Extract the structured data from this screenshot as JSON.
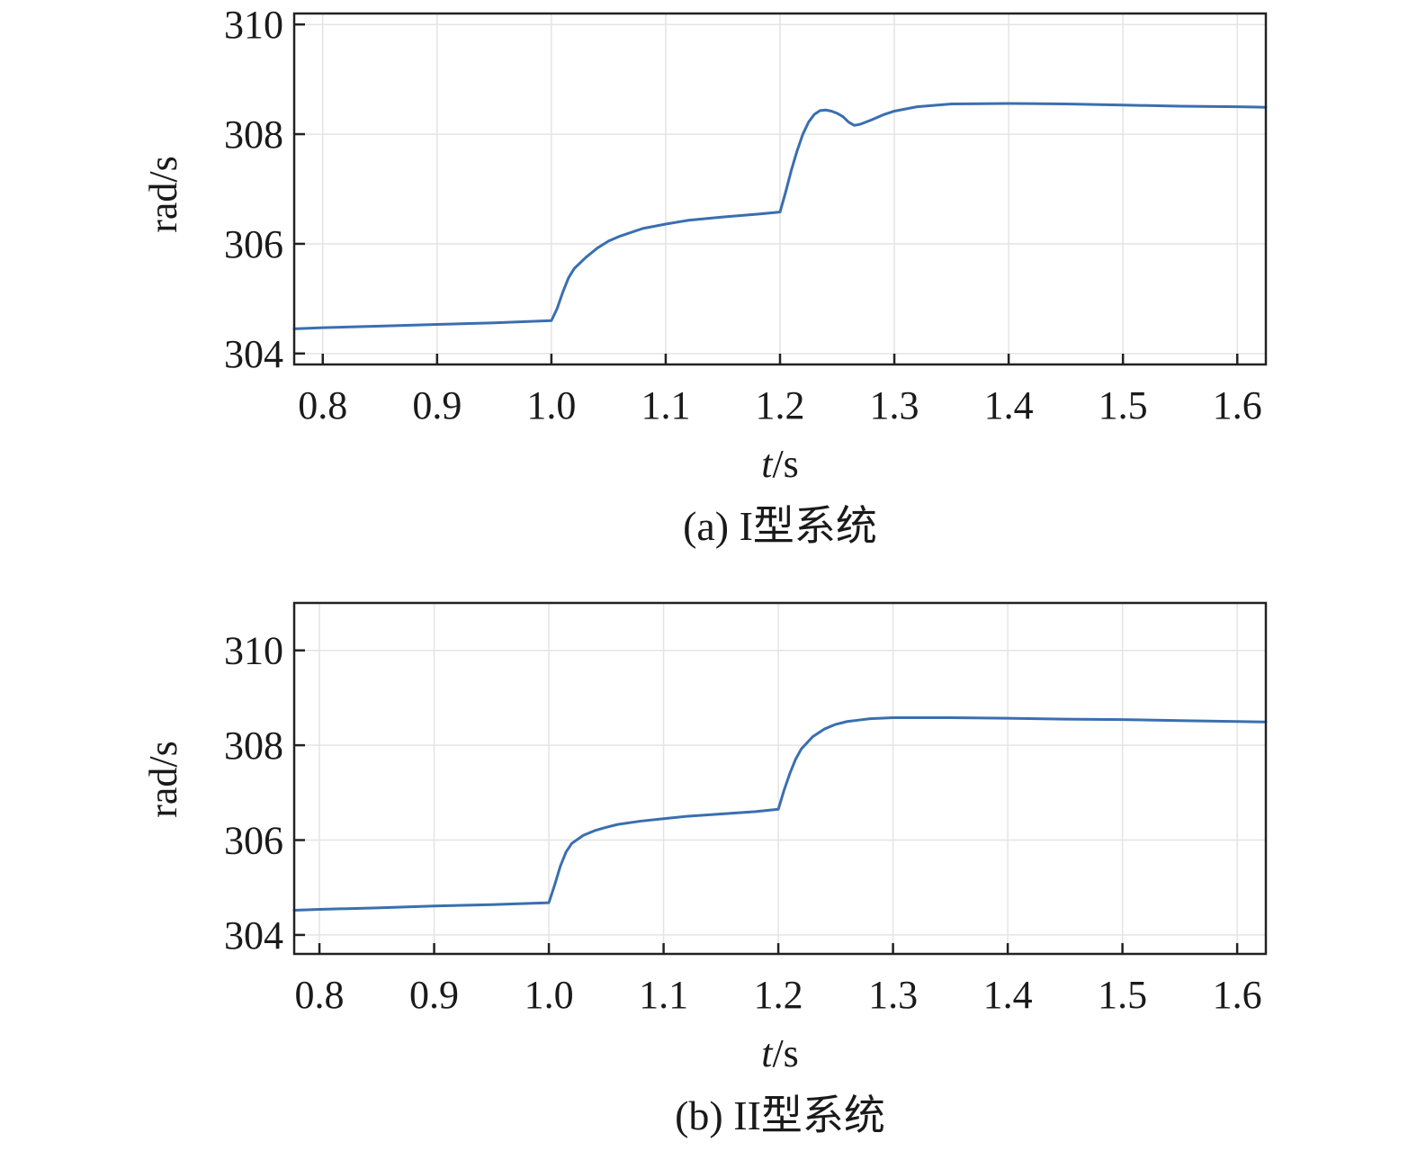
{
  "chart_data": [
    {
      "type": "line",
      "caption": "(a) I型系统",
      "xlabel_italic": "t",
      "xlabel_unit": "/s",
      "ylabel": "rad/s",
      "xlim": [
        0.775,
        1.625
      ],
      "ylim": [
        303.8,
        310.2
      ],
      "xticks": [
        0.8,
        0.9,
        1.0,
        1.1,
        1.2,
        1.3,
        1.4,
        1.5,
        1.6
      ],
      "xtick_labels": [
        "0.8",
        "0.9",
        "1.0",
        "1.1",
        "1.2",
        "1.3",
        "1.4",
        "1.5",
        "1.6"
      ],
      "yticks": [
        304,
        306,
        308,
        310
      ],
      "ytick_labels": [
        "304",
        "306",
        "308",
        "310"
      ],
      "grid": true,
      "line_color": "#3a6fb0",
      "series": [
        {
          "x": [
            0.775,
            0.8,
            0.85,
            0.9,
            0.95,
            1.0,
            1.005,
            1.01,
            1.015,
            1.02,
            1.03,
            1.04,
            1.05,
            1.06,
            1.08,
            1.1,
            1.12,
            1.15,
            1.18,
            1.2,
            1.205,
            1.21,
            1.215,
            1.22,
            1.225,
            1.23,
            1.235,
            1.24,
            1.245,
            1.25,
            1.255,
            1.26,
            1.265,
            1.27,
            1.28,
            1.29,
            1.3,
            1.32,
            1.35,
            1.4,
            1.45,
            1.5,
            1.55,
            1.6,
            1.625
          ],
          "y": [
            304.45,
            304.47,
            304.5,
            304.53,
            304.56,
            304.6,
            304.82,
            305.12,
            305.38,
            305.55,
            305.75,
            305.92,
            306.05,
            306.14,
            306.28,
            306.36,
            306.43,
            306.49,
            306.54,
            306.58,
            306.95,
            307.35,
            307.7,
            308.0,
            308.22,
            308.36,
            308.43,
            308.44,
            308.42,
            308.38,
            308.32,
            308.22,
            308.16,
            308.18,
            308.26,
            308.35,
            308.42,
            308.5,
            308.55,
            308.56,
            308.55,
            308.53,
            308.51,
            308.5,
            308.49
          ]
        }
      ]
    },
    {
      "type": "line",
      "caption": "(b) II型系统",
      "xlabel_italic": "t",
      "xlabel_unit": "/s",
      "ylabel": "rad/s",
      "xlim": [
        0.778,
        1.625
      ],
      "ylim": [
        303.6,
        311.0
      ],
      "xticks": [
        0.8,
        0.9,
        1.0,
        1.1,
        1.2,
        1.3,
        1.4,
        1.5,
        1.6
      ],
      "xtick_labels": [
        "0.8",
        "0.9",
        "1.0",
        "1.1",
        "1.2",
        "1.3",
        "1.4",
        "1.5",
        "1.6"
      ],
      "yticks": [
        304,
        306,
        308,
        310
      ],
      "ytick_labels": [
        "304",
        "306",
        "308",
        "310"
      ],
      "grid": true,
      "line_color": "#3a6fb0",
      "series": [
        {
          "x": [
            0.778,
            0.8,
            0.85,
            0.9,
            0.95,
            1.0,
            1.005,
            1.01,
            1.015,
            1.02,
            1.03,
            1.04,
            1.05,
            1.06,
            1.08,
            1.1,
            1.12,
            1.15,
            1.18,
            1.2,
            1.205,
            1.21,
            1.215,
            1.22,
            1.23,
            1.24,
            1.25,
            1.26,
            1.27,
            1.28,
            1.3,
            1.35,
            1.4,
            1.45,
            1.5,
            1.55,
            1.6,
            1.625
          ],
          "y": [
            304.52,
            304.54,
            304.57,
            304.61,
            304.64,
            304.68,
            305.05,
            305.45,
            305.75,
            305.93,
            306.1,
            306.2,
            306.27,
            306.33,
            306.4,
            306.45,
            306.5,
            306.55,
            306.6,
            306.65,
            307.05,
            307.4,
            307.7,
            307.92,
            308.18,
            308.34,
            308.44,
            308.5,
            308.53,
            308.56,
            308.58,
            308.58,
            308.57,
            308.55,
            308.54,
            308.52,
            308.5,
            308.49
          ]
        }
      ]
    }
  ]
}
